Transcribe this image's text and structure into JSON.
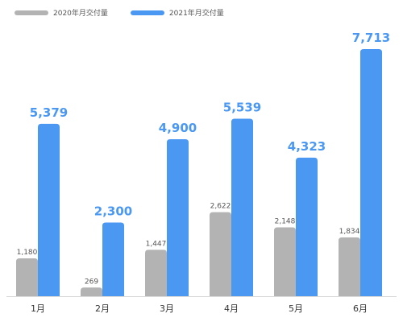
{
  "chart_data": {
    "type": "bar",
    "categories": [
      "1月",
      "2月",
      "3月",
      "4月",
      "5月",
      "6月"
    ],
    "series": [
      {
        "name": "2020年月交付量",
        "color": "#b3b3b3",
        "values": [
          1180,
          269,
          1447,
          2622,
          2148,
          1834
        ],
        "labels": [
          "1,180",
          "269",
          "1,447",
          "2,622",
          "2,148",
          "1,834"
        ]
      },
      {
        "name": "2021年月交付量",
        "color": "#4b98f3",
        "values": [
          5379,
          2300,
          4900,
          5539,
          4323,
          7713
        ],
        "labels": [
          "5,379",
          "2,300",
          "4,900",
          "5,539",
          "4,323",
          "7,713"
        ]
      }
    ],
    "axis_color": "#d9d9d9",
    "label_color_2020": "#555555",
    "label_color_2021": "#4b98f3",
    "legend_position": "top-left",
    "grid": false,
    "ylim": [
      0,
      7713
    ]
  }
}
